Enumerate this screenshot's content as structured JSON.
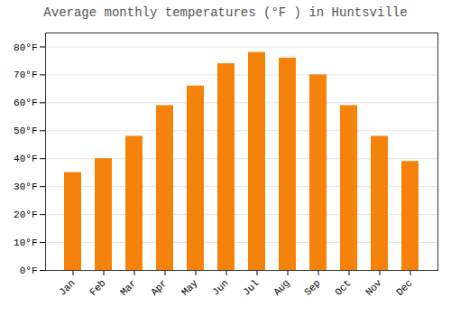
{
  "chart_data": {
    "type": "bar",
    "title": "Average monthly temperatures (°F ) in Huntsville",
    "categories": [
      "Jan",
      "Feb",
      "Mar",
      "Apr",
      "May",
      "Jun",
      "Jul",
      "Aug",
      "Sep",
      "Oct",
      "Nov",
      "Dec"
    ],
    "values": [
      35,
      40,
      48,
      59,
      66,
      74,
      78,
      76,
      70,
      59,
      48,
      39
    ],
    "color": "#F5820A",
    "ylim": [
      0,
      85
    ],
    "yticks": [
      {
        "value": 0,
        "label": "0°F"
      },
      {
        "value": 10,
        "label": "10°F"
      },
      {
        "value": 20,
        "label": "20°F"
      },
      {
        "value": 30,
        "label": "30°F"
      },
      {
        "value": 40,
        "label": "40°F"
      },
      {
        "value": 50,
        "label": "50°F"
      },
      {
        "value": 60,
        "label": "60°F"
      },
      {
        "value": 70,
        "label": "70°F"
      },
      {
        "value": 80,
        "label": "80°F"
      }
    ],
    "grid": true
  }
}
